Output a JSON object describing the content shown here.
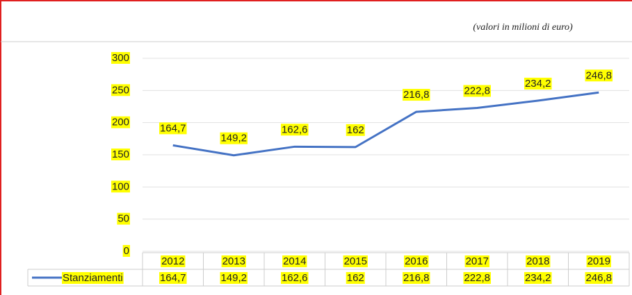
{
  "chart_data": {
    "type": "line",
    "subtitle": "(valori in milioni di euro)",
    "categories": [
      "2012",
      "2013",
      "2014",
      "2015",
      "2016",
      "2017",
      "2018",
      "2019"
    ],
    "series": [
      {
        "name": "Stanziamenti",
        "color": "#4472c4",
        "values": [
          164.7,
          149.2,
          162.6,
          162,
          216.8,
          222.8,
          234.2,
          246.8
        ],
        "value_labels": [
          "164,7",
          "149,2",
          "162,6",
          "162",
          "216,8",
          "222,8",
          "234,2",
          "246,8"
        ]
      }
    ],
    "ylim": [
      0,
      300
    ],
    "yticks": [
      0,
      50,
      100,
      150,
      200,
      250,
      300
    ],
    "grid": true,
    "legend": "bottom",
    "label_highlight": "#ffff00"
  }
}
